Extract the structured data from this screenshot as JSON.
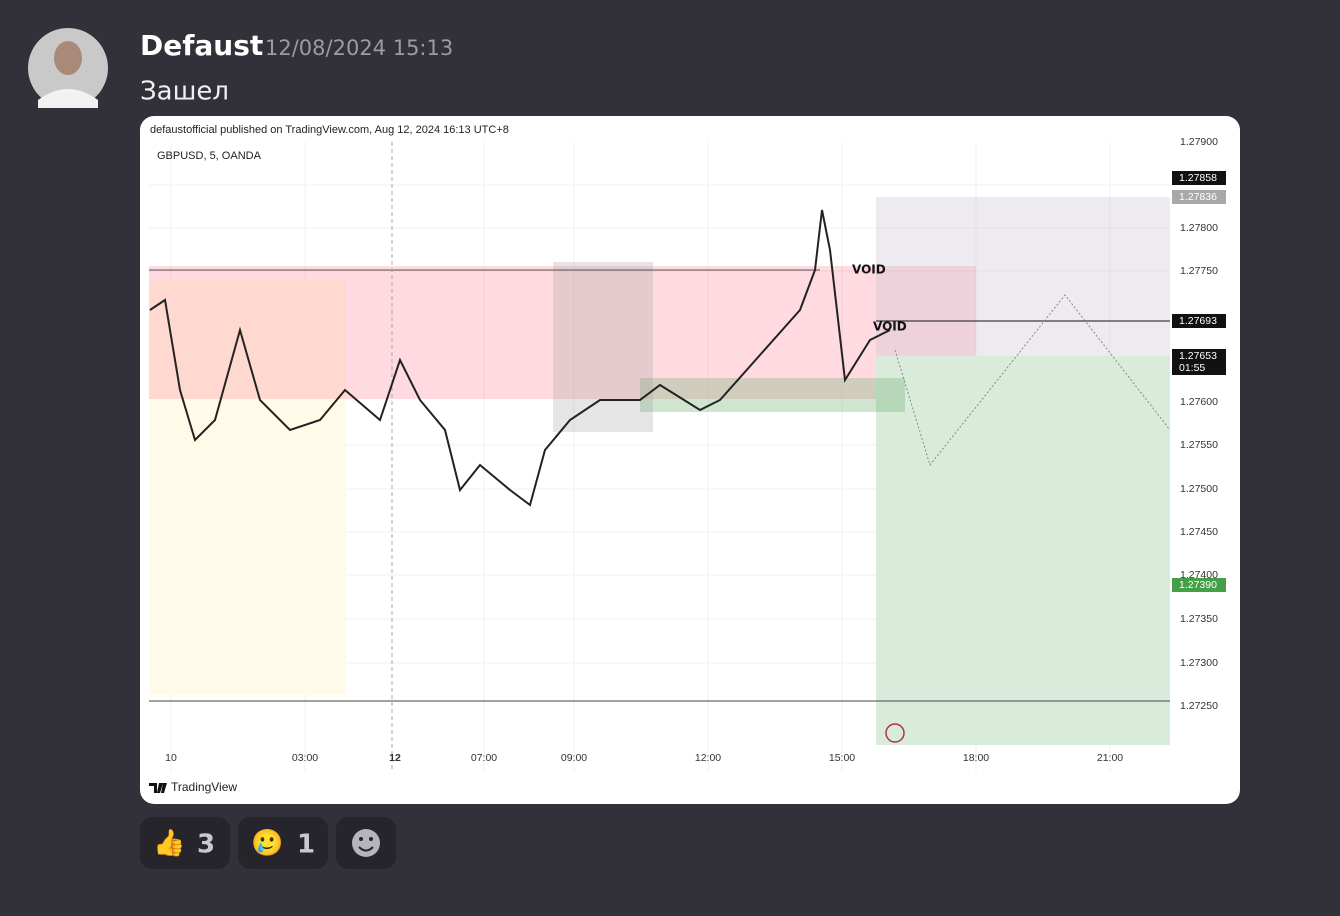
{
  "message": {
    "author": "Defaust",
    "timestamp": "12/08/2024 15:13",
    "text": "Зашел"
  },
  "embed": {
    "header": "defaustofficial published on TradingView.com, Aug 12, 2024 16:13 UTC+8",
    "symbol": "GBPUSD, 5, OANDA",
    "y_axis_labels": [
      "1.27900",
      "1.27800",
      "1.27750",
      "1.27600",
      "1.27550",
      "1.27500",
      "1.27450",
      "1.27400",
      "1.27350",
      "1.27300",
      "1.27250"
    ],
    "price_tags": [
      "1.27858",
      "1.27836",
      "1.27693",
      "1.27653",
      "01:55",
      "1.27390"
    ],
    "x_axis_labels": [
      "10",
      "03:00",
      "12",
      "07:00",
      "09:00",
      "12:00",
      "15:00",
      "18:00",
      "21:00"
    ],
    "annotations": [
      "VOID",
      "VOID"
    ],
    "footer": "TradingView"
  },
  "reactions": [
    {
      "emoji": "👍",
      "count": 3
    },
    {
      "emoji": "🥲",
      "count": 1
    }
  ]
}
